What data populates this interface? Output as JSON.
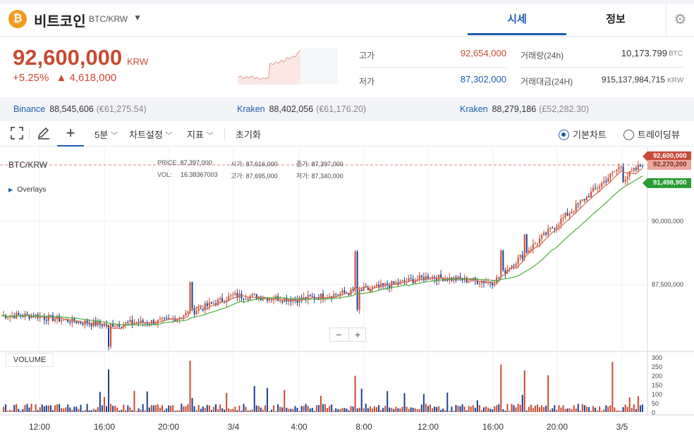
{
  "header": {
    "coin_symbol_glyph": "₿",
    "coin_name": "비트코인",
    "pair": "BTC/KRW",
    "tabs": [
      {
        "label": "시세"
      },
      {
        "label": "정보"
      }
    ]
  },
  "price": {
    "current": "92,600,000",
    "unit": "KRW",
    "change_pct": "+5.25%",
    "change_abs": "▲ 4,618,000"
  },
  "stats": {
    "high_label": "고가",
    "high": "92,654,000",
    "low_label": "저가",
    "low": "87,302,000",
    "volume_label": "거래량(24h)",
    "volume": "10,173.799",
    "volume_unit": "BTC",
    "amount_label": "거래대금(24H)",
    "amount": "915,137,984,715",
    "amount_unit": "KRW"
  },
  "exchanges": [
    {
      "name": "Binance",
      "price": "88,545,606",
      "foreign": "(€61,275.54)"
    },
    {
      "name": "Kraken",
      "price": "88,402,056",
      "foreign": "(€61,176.20)"
    },
    {
      "name": "Kraken",
      "price": "88,279,186",
      "foreign": "(£52,282.30)"
    }
  ],
  "toolbar": {
    "interval": "5분",
    "chart_settings": "차트설정",
    "indicators": "지표",
    "reset": "초기화",
    "mode_basic": "기본차트",
    "mode_trading": "트레이딩뷰"
  },
  "chart": {
    "symbol": "BTC/KRW",
    "overlays": "Overlays",
    "ohlc": {
      "price_label": "PRICE:",
      "price": "87,397,000",
      "vol_label": "VOL:",
      "vol": "16.38367003",
      "open_label": "시가:",
      "open": "87,616,000",
      "high_label": "고가:",
      "high": "87,695,000",
      "close_label": "종가:",
      "close": "87,397,000",
      "low_label": "저가:",
      "low": "87,340,000"
    },
    "tag_price": "92,600,000",
    "tag_ma1": "92,270,200",
    "tag_ma2": "91,498,900",
    "y_ticks": [
      "90,000,000",
      "87,500,000"
    ],
    "vol_ticks": [
      "300",
      "250",
      "200",
      "150",
      "100",
      "50",
      "0"
    ],
    "x_ticks": [
      "12:00",
      "16:00",
      "20:00",
      "3/4",
      "4:00",
      "8:00",
      "12:00",
      "16:00",
      "20:00",
      "3/5"
    ],
    "volume_label": "VOLUME",
    "zoom_out": "−",
    "zoom_in": "+",
    "colors": {
      "up": "#c84a31",
      "down": "#1d3f8f",
      "ma_short": "#d2694f",
      "ma_long": "#4caf3a"
    }
  },
  "chart_data": {
    "type": "candlestick",
    "x": [
      "12:00",
      "16:00",
      "20:00",
      "3/4",
      "4:00",
      "8:00",
      "12:00",
      "16:00",
      "20:00",
      "3/5"
    ],
    "close": [
      86900000,
      86600000,
      86750000,
      87700000,
      87550000,
      87900000,
      88400000,
      88200000,
      90400000,
      92600000
    ],
    "ylabel": "KRW"
  }
}
